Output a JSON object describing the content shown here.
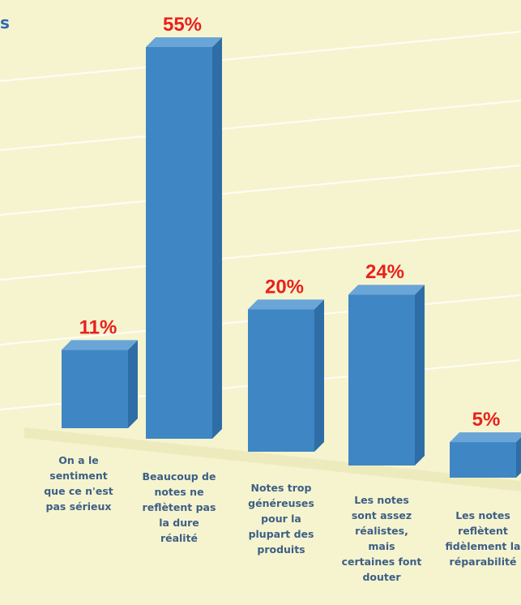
{
  "title_fragment": "s",
  "chart_data": {
    "type": "bar",
    "categories": [
      "On a le sentiment que ce n'est pas sérieux",
      "Beaucoup de notes ne reflètent pas la dure réalité",
      "Notes trop généreuses pour la plupart des produits",
      "Les notes sont assez réalistes, mais certaines font douter",
      "Les notes reflètent fidèlement la réparabilité"
    ],
    "category_label_lines": [
      [
        "On a le",
        "sentiment",
        "que ce n'est",
        "pas sérieux"
      ],
      [
        "Beaucoup de",
        "notes ne",
        "reflètent pas",
        "la dure",
        "réalité"
      ],
      [
        "Notes trop",
        "généreuses",
        "pour la",
        "plupart des",
        "produits"
      ],
      [
        "Les notes",
        "sont assez",
        "réalistes,",
        "mais",
        "certaines font",
        "douter"
      ],
      [
        "Les notes",
        "reflètent",
        "fidèlement la",
        "réparabilité"
      ]
    ],
    "values": [
      11,
      55,
      20,
      24,
      5
    ],
    "data_labels": [
      "11%",
      "55%",
      "20%",
      "24%",
      "5%"
    ],
    "unit": "%",
    "ylim": [
      0,
      60
    ],
    "grid": true,
    "legend": "none",
    "colors": {
      "bar_front": "#3f86c4",
      "bar_side": "#2e6da6",
      "bar_top": "#6aa5d8",
      "value_label": "#e8211c",
      "category_label": "#3d5f84",
      "gridline": "#ffffff",
      "background": "#f6f4cf"
    }
  }
}
